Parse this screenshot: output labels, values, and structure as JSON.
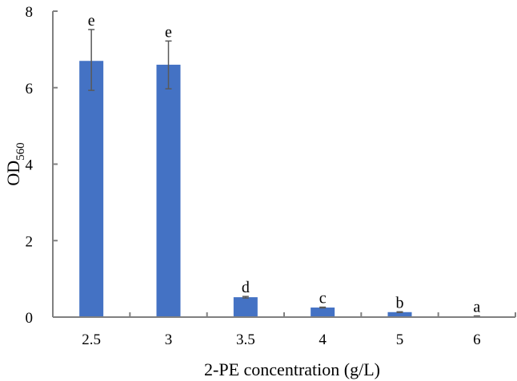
{
  "chart_data": {
    "type": "bar",
    "title": "",
    "xlabel": "2-PE concentration (g/L)",
    "ylabel": "OD560",
    "ylabel_main": "OD",
    "ylabel_sub": "560",
    "categories": [
      "2.5",
      "3",
      "3.5",
      "4",
      "5",
      "6"
    ],
    "values": [
      6.7,
      6.6,
      0.52,
      0.25,
      0.13,
      0.02
    ],
    "error_low": [
      5.93,
      5.97,
      0.5,
      0.24,
      0.12,
      0.01
    ],
    "error_high": [
      7.52,
      7.22,
      0.54,
      0.26,
      0.14,
      0.03
    ],
    "significance_letters": [
      "e",
      "e",
      "d",
      "c",
      "b",
      "a"
    ],
    "ylim": [
      0,
      8
    ],
    "yticks": [
      0,
      2,
      4,
      6,
      8
    ],
    "grid": false,
    "legend": null,
    "bar_color": "#4472C4",
    "axis_color": "#808080",
    "errorbar_color": "#595959"
  }
}
